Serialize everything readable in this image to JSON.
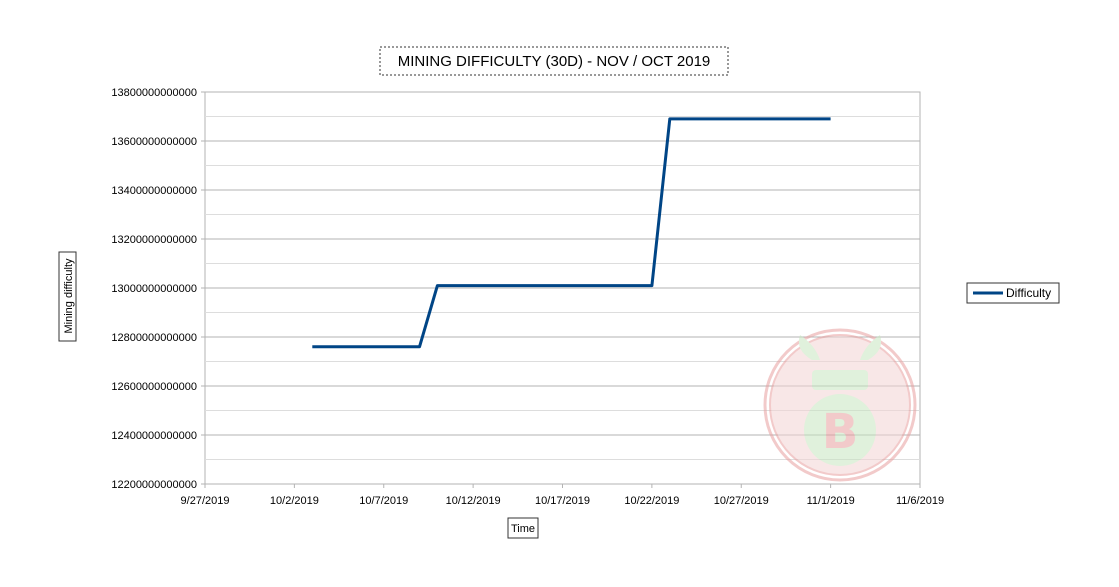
{
  "chart_data": {
    "type": "line",
    "title": "MINING DIFFICULTY (30D) - NOV / OCT 2019",
    "xlabel": "Time",
    "ylabel": "Mining difficulty",
    "x_ticks": [
      "9/27/2019",
      "10/2/2019",
      "10/7/2019",
      "10/12/2019",
      "10/17/2019",
      "10/22/2019",
      "10/27/2019",
      "11/1/2019",
      "11/6/2019"
    ],
    "y_ticks": [
      "12200000000000",
      "12400000000000",
      "12600000000000",
      "12800000000000",
      "13000000000000",
      "13200000000000",
      "13400000000000",
      "13600000000000",
      "13800000000000"
    ],
    "xlim": [
      "2019-09-27",
      "2019-11-06"
    ],
    "ylim": [
      12200000000000,
      13800000000000
    ],
    "grid": true,
    "legend_position": "right",
    "series": [
      {
        "name": "Difficulty",
        "color": "#004586",
        "points": [
          {
            "x": "2019-10-03",
            "y": 12760000000000
          },
          {
            "x": "2019-10-09",
            "y": 12760000000000
          },
          {
            "x": "2019-10-10",
            "y": 13010000000000
          },
          {
            "x": "2019-10-22",
            "y": 13010000000000
          },
          {
            "x": "2019-10-23",
            "y": 13690000000000
          },
          {
            "x": "2019-11-01",
            "y": 13690000000000
          }
        ]
      }
    ]
  },
  "watermark": {
    "icon": "bitcoin-bulb-logo-icon",
    "colors": [
      "#e8a0a0",
      "#c8e6c0"
    ]
  }
}
